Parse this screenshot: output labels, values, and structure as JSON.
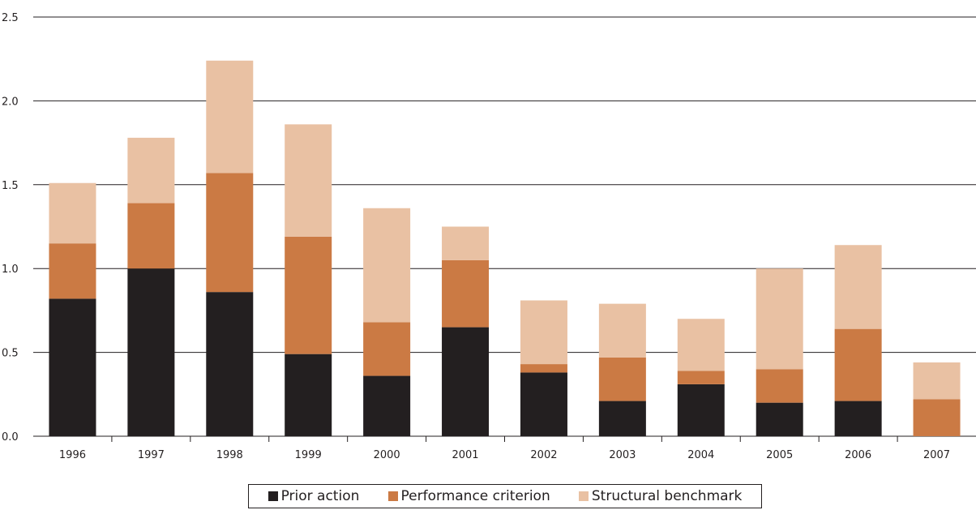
{
  "chart_data": {
    "type": "bar",
    "stacked": true,
    "title": "",
    "xlabel": "",
    "ylabel": "",
    "ylim": [
      0,
      2.5
    ],
    "yticks": [
      "0.0",
      "0.5",
      "1.0",
      "1.5",
      "2.0",
      "2.5"
    ],
    "grid": true,
    "legend_placement": "bottom-center",
    "categories": [
      "1996",
      "1997",
      "1998",
      "1999",
      "2000",
      "2001",
      "2002",
      "2003",
      "2004",
      "2005",
      "2006",
      "2007"
    ],
    "series": [
      {
        "name": "Prior action",
        "color": "#231f20",
        "values": [
          0.82,
          1.0,
          0.86,
          0.49,
          0.36,
          0.65,
          0.38,
          0.21,
          0.31,
          0.2,
          0.21,
          0.0
        ]
      },
      {
        "name": "Performance criterion",
        "color": "#cb7a44",
        "values": [
          0.33,
          0.39,
          0.71,
          0.7,
          0.32,
          0.4,
          0.05,
          0.26,
          0.08,
          0.2,
          0.43,
          0.22
        ]
      },
      {
        "name": "Structural benchmark",
        "color": "#e9c1a3",
        "values": [
          0.36,
          0.39,
          0.67,
          0.67,
          0.68,
          0.2,
          0.38,
          0.32,
          0.31,
          0.6,
          0.5,
          0.22
        ]
      }
    ]
  }
}
